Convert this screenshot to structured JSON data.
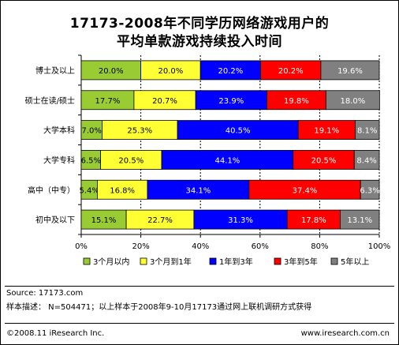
{
  "title_line1": "17173-2008年不同学历网络游戏用户的",
  "title_line2": "平均单款游戏持续投入时间",
  "footer": {
    "source": "Source:  17173.com",
    "sample": "样本描述： N=504471；以上样本于2008年9-10月17173通过网上联机调研方式获得",
    "copyright": "©2008.11 iResearch Inc.",
    "website": "www.iresearch.com.cn"
  },
  "chart_data": {
    "type": "bar",
    "orientation": "horizontal",
    "stacked": true,
    "percent": true,
    "categories": [
      "博士及以上",
      "硕士在读/硕士",
      "大学本科",
      "大学专科",
      "高中（中专）",
      "初中及以下"
    ],
    "series": [
      {
        "name": "3个月以内",
        "color": "#99cc33",
        "values": [
          20.0,
          17.7,
          7.0,
          6.5,
          5.4,
          15.1
        ]
      },
      {
        "name": "3个月到1年",
        "color": "#ffff33",
        "values": [
          20.0,
          20.7,
          25.3,
          20.5,
          16.8,
          22.7
        ]
      },
      {
        "name": "1年到3年",
        "color": "#0000ff",
        "values": [
          20.2,
          23.9,
          40.5,
          44.1,
          34.1,
          31.3
        ]
      },
      {
        "name": "3年到5年",
        "color": "#ff0000",
        "values": [
          20.2,
          19.8,
          19.1,
          20.5,
          37.4,
          17.8
        ]
      },
      {
        "name": "5年以上",
        "color": "#808080",
        "values": [
          19.6,
          18.0,
          8.1,
          8.4,
          6.3,
          13.1
        ]
      }
    ],
    "data_labels": [
      [
        "20.0%",
        "20.0%",
        "20.2%",
        "20.2%",
        "19.6%"
      ],
      [
        "17.7%",
        "20.7%",
        "23.9%",
        "19.8%",
        "18.0%"
      ],
      [
        "7.0%",
        "25.3%",
        "40.5%",
        "19.1%",
        "8.1%"
      ],
      [
        "6.5%",
        "20.5%",
        "44.1%",
        "20.5%",
        "8.4%"
      ],
      [
        "5.4%",
        "16.8%",
        "34.1%",
        "37.4%",
        "6.3%"
      ],
      [
        "15.1%",
        "22.7%",
        "31.3%",
        "17.8%",
        "13.1%"
      ]
    ],
    "x_ticks": [
      "0%",
      "20%",
      "40%",
      "60%",
      "80%",
      "100%"
    ],
    "xlim": [
      0,
      100
    ],
    "grid": true,
    "legend_position": "bottom"
  }
}
